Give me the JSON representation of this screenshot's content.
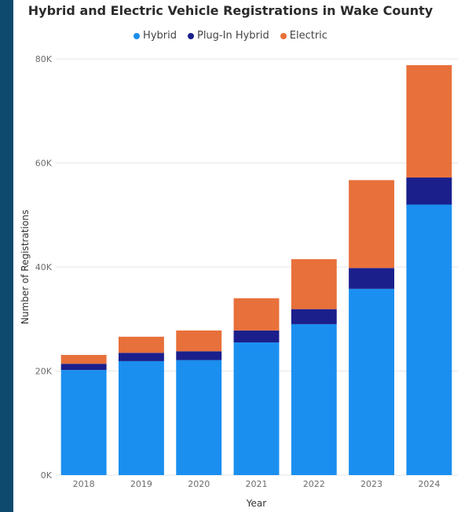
{
  "chart_data": {
    "type": "bar",
    "stacked": true,
    "title": "Hybrid and Electric Vehicle Registrations in Wake County",
    "xlabel": "Year",
    "ylabel": "Number of Registrations",
    "categories": [
      "2018",
      "2019",
      "2020",
      "2021",
      "2022",
      "2023",
      "2024"
    ],
    "ylim": [
      0,
      80000
    ],
    "yticks": [
      0,
      20000,
      40000,
      60000,
      80000
    ],
    "ytick_labels": [
      "0K",
      "20K",
      "40K",
      "60K",
      "80K"
    ],
    "grid": true,
    "legend": "top-center",
    "series": [
      {
        "name": "Hybrid",
        "color": "#1a8ff0",
        "values": [
          20200,
          21900,
          22100,
          25500,
          29000,
          35800,
          52000
        ]
      },
      {
        "name": "Plug-In Hybrid",
        "color": "#1a1f8c",
        "values": [
          1200,
          1600,
          1700,
          2300,
          2900,
          4000,
          5200
        ]
      },
      {
        "name": "Electric",
        "color": "#e8703a",
        "values": [
          1700,
          3100,
          4000,
          6200,
          9600,
          16900,
          21600
        ]
      }
    ]
  }
}
